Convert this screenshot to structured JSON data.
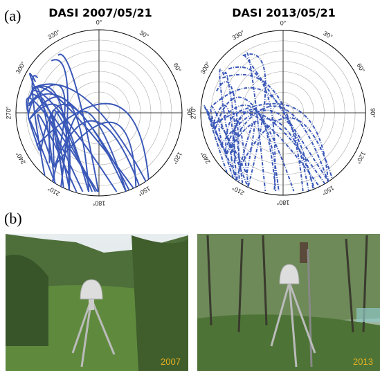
{
  "panel_a": {
    "label": "(a)",
    "plots": [
      {
        "title": "DASI 2007/05/21"
      },
      {
        "title": "DASI 2013/05/21"
      }
    ],
    "azimuth_labels": [
      "0°",
      "30°",
      "60°",
      "90°",
      "120°",
      "150°",
      "180°",
      "210°",
      "240°",
      "270°",
      "300°",
      "330°"
    ]
  },
  "panel_b": {
    "label": "(b)",
    "photos": [
      {
        "year": "2007"
      },
      {
        "year": "2013"
      }
    ]
  }
}
